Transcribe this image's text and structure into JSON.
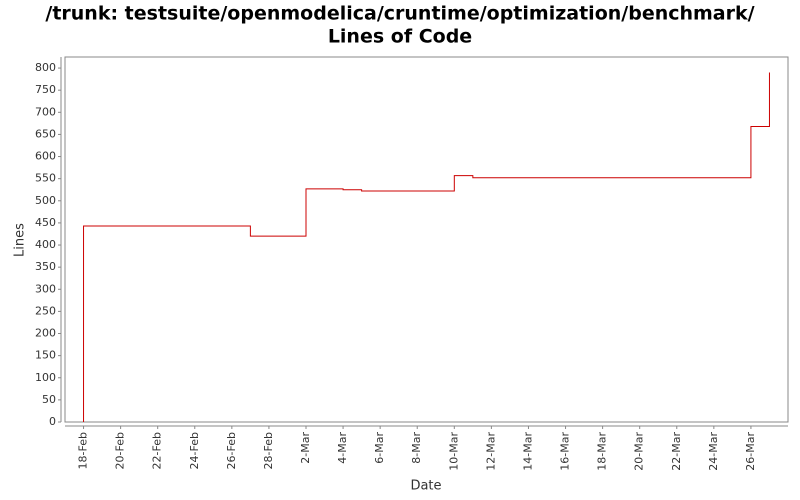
{
  "chart_data": {
    "type": "step-line",
    "title": [
      "/trunk: testsuite/openmodelica/cruntime/optimization/benchmark/",
      "Lines of Code"
    ],
    "x_label": "Date",
    "y_label": "Lines",
    "x": [
      "18-Feb",
      "18-Feb",
      "27-Feb",
      "2-Mar",
      "4-Mar",
      "5-Mar",
      "10-Mar",
      "11-Mar",
      "26-Mar",
      "27-Mar"
    ],
    "series": [
      {
        "name": "Lines",
        "color": "#cc0000",
        "values": [
          0,
          443,
          420,
          527,
          525,
          522,
          557,
          552,
          668,
          790
        ]
      }
    ],
    "xlim": [
      "17-Feb",
      "28-Mar"
    ],
    "xticks": [
      "18-Feb",
      "20-Feb",
      "22-Feb",
      "24-Feb",
      "26-Feb",
      "28-Feb",
      "2-Mar",
      "4-Mar",
      "6-Mar",
      "8-Mar",
      "10-Mar",
      "12-Mar",
      "14-Mar",
      "16-Mar",
      "18-Mar",
      "20-Mar",
      "22-Mar",
      "24-Mar",
      "26-Mar"
    ],
    "ylim": [
      0,
      825
    ],
    "yticks": [
      0,
      50,
      100,
      150,
      200,
      250,
      300,
      350,
      400,
      450,
      500,
      550,
      600,
      650,
      700,
      750,
      800
    ],
    "grid": false
  }
}
